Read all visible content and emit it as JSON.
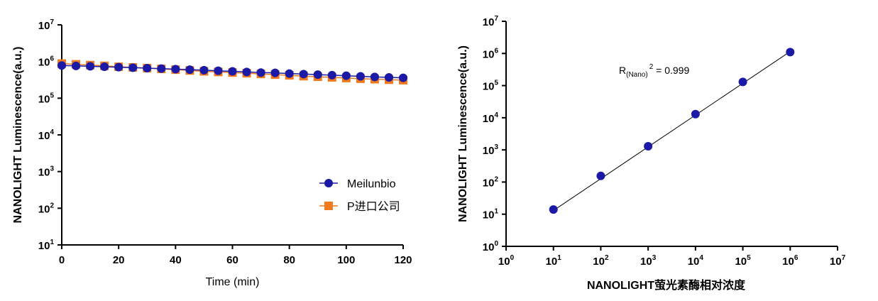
{
  "colors": {
    "meilunbio": "#1a1aa6",
    "p_import": "#f07b1e",
    "fit_line": "#000000"
  },
  "chart_data": [
    {
      "type": "line",
      "title": "",
      "xlabel": "Time (min)",
      "ylabel": "NANOLIGHT  Luminescence(a.u.)",
      "xlim": [
        0,
        120
      ],
      "xticks": [
        0,
        20,
        40,
        60,
        80,
        100,
        120
      ],
      "ylim": [
        10,
        10000000
      ],
      "yscale": "log",
      "ytick_base": "10",
      "ytick_exponents": [
        "1",
        "2",
        "3",
        "4",
        "5",
        "6",
        "7"
      ],
      "legend_position": "bottom-right",
      "x": [
        0,
        5,
        10,
        15,
        20,
        25,
        30,
        35,
        40,
        45,
        50,
        55,
        60,
        65,
        70,
        75,
        80,
        85,
        90,
        95,
        100,
        105,
        110,
        115,
        120
      ],
      "series": [
        {
          "name": "Meilunbio",
          "marker": "circle",
          "color": "#1a1aa6",
          "values": [
            780000,
            760000,
            740000,
            720000,
            700000,
            680000,
            660000,
            640000,
            620000,
            600000,
            580000,
            560000,
            540000,
            520000,
            500000,
            490000,
            470000,
            455000,
            440000,
            425000,
            410000,
            395000,
            380000,
            370000,
            360000
          ]
        },
        {
          "name": "P进口公司",
          "marker": "square",
          "color": "#f07b1e",
          "values": [
            880000,
            840000,
            800000,
            760000,
            720000,
            690000,
            660000,
            630000,
            600000,
            570000,
            540000,
            520000,
            500000,
            480000,
            460000,
            440000,
            420000,
            400000,
            385000,
            370000,
            355000,
            340000,
            330000,
            320000,
            310000
          ]
        }
      ]
    },
    {
      "type": "scatter",
      "title": "",
      "xlabel": "NANOLIGHT萤光素酶相对浓度",
      "ylabel": "NANOLIGHT  Luminescence(a.u.)",
      "xscale": "log",
      "yscale": "log",
      "xlim": [
        1,
        10000000
      ],
      "ylim": [
        1,
        10000000
      ],
      "xtick_base": "10",
      "xtick_exponents": [
        "0",
        "1",
        "2",
        "3",
        "4",
        "5",
        "6",
        "7"
      ],
      "ytick_base": "10",
      "ytick_exponents": [
        "0",
        "1",
        "2",
        "3",
        "4",
        "5",
        "6",
        "7"
      ],
      "annotation": {
        "r_main": "R",
        "r_sub": "(Nano)",
        "r_sup": "2",
        "r_value": " = 0.999"
      },
      "points": [
        {
          "x": 10,
          "y": 14
        },
        {
          "x": 100,
          "y": 155
        },
        {
          "x": 1000,
          "y": 1300
        },
        {
          "x": 10000,
          "y": 13000
        },
        {
          "x": 100000,
          "y": 130000
        },
        {
          "x": 1000000,
          "y": 1100000
        }
      ],
      "fit_line": {
        "x": [
          10,
          1000000
        ],
        "y": [
          13,
          1150000
        ]
      }
    }
  ]
}
